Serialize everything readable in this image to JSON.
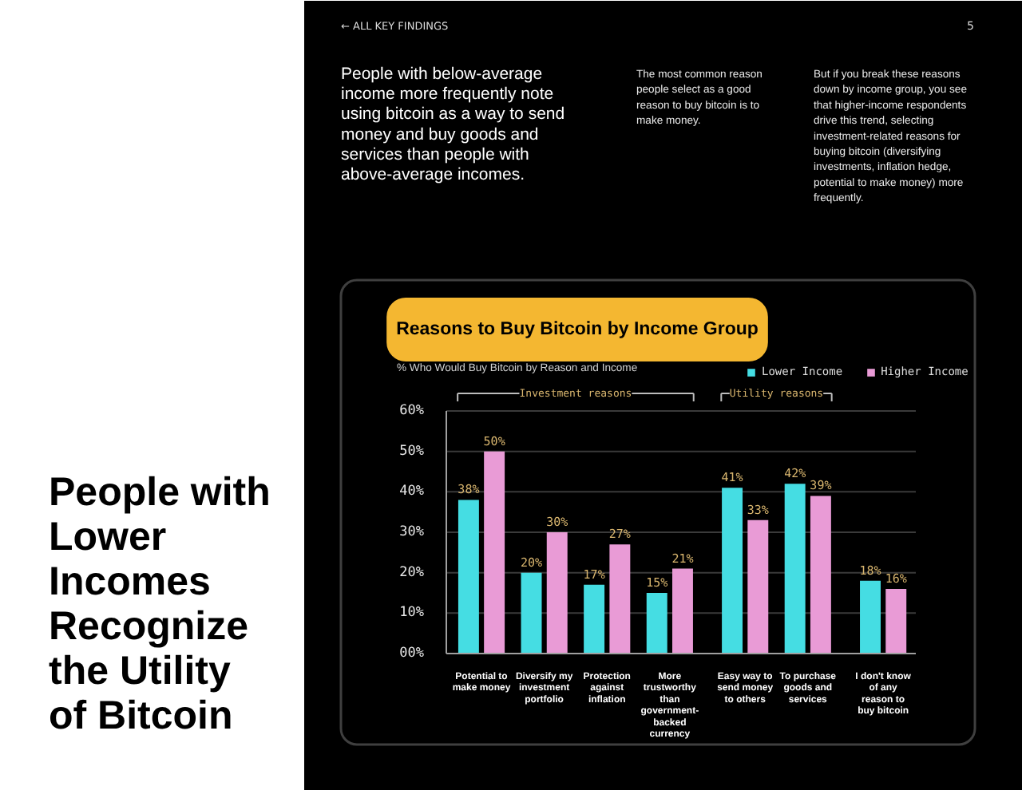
{
  "chart_data": {
    "type": "bar",
    "title": "Reasons to Buy Bitcoin by Income Group",
    "subtitle": "% Who Would Buy Bitcoin by Reason and Income",
    "categories": [
      "Potential to make money",
      "Diversify my investment portfolio",
      "Protection against inflation",
      "More trustworthy than government-backed currency",
      "Easy way to send money to others",
      "To purchase goods and services",
      "I don't know of any reason to buy bitcoin"
    ],
    "series": [
      {
        "name": "Lower Income",
        "color": "#45dde3",
        "values": [
          38,
          20,
          17,
          15,
          41,
          42,
          18
        ],
        "value_labels": [
          "38%",
          "20%",
          "17%",
          "15%",
          "41%",
          "42%",
          "18%"
        ]
      },
      {
        "name": "Higher Income",
        "color": "#e99bd6",
        "values": [
          50,
          30,
          27,
          21,
          33,
          39,
          16
        ],
        "value_labels": [
          "50%",
          "30%",
          "27%",
          "21%",
          "33%",
          "39%",
          "16%"
        ]
      }
    ],
    "ylim": [
      0,
      60
    ],
    "yticks": [
      {
        "value": 0,
        "label": "00%"
      },
      {
        "value": 10,
        "label": "10%"
      },
      {
        "value": 20,
        "label": "20%"
      },
      {
        "value": 30,
        "label": "30%"
      },
      {
        "value": 40,
        "label": "40%"
      },
      {
        "value": 50,
        "label": "50%"
      },
      {
        "value": 60,
        "label": "60%"
      }
    ],
    "grid": "y",
    "legend": "top right",
    "annotations": [
      "← ALL KEY FINDINGS",
      "5",
      "People with below-average income more frequently note using bitcoin as a way to send money and buy goods and services than people with above-average incomes.",
      "The most common reason people select as a good reason to buy bitcoin is to make money.",
      "But if you break these reasons down by income group, you see that higher-income respondents drive this trend, selecting investment-related reasons for buying bitcoin (diversifying investments, inflation hedge, potential to make money) more frequently.",
      "People with Lower Incomes Recognize the Utility of Bitcoin",
      "Investment reasons",
      "Utility reasons"
    ]
  }
}
